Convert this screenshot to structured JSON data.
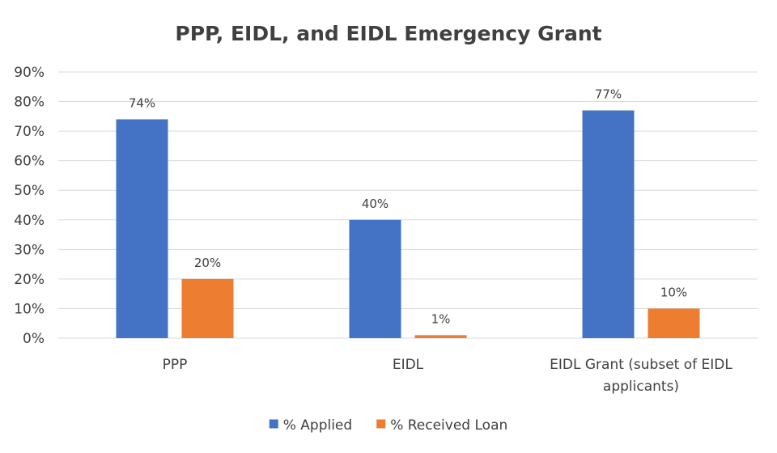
{
  "chart_data": {
    "type": "bar",
    "title": "PPP, EIDL, and EIDL Emergency Grant",
    "xlabel": "",
    "ylabel": "",
    "categories": [
      [
        "PPP"
      ],
      [
        "EIDL"
      ],
      [
        "EIDL Grant (subset of EIDL",
        "applicants)"
      ]
    ],
    "series": [
      {
        "name": "% Applied",
        "color": "#4472c4",
        "values": [
          74,
          40,
          77
        ],
        "labels": [
          "74%",
          "40%",
          "77%"
        ]
      },
      {
        "name": "% Received Loan",
        "color": "#ed7d31",
        "values": [
          20,
          1,
          10
        ],
        "labels": [
          "20%",
          "1%",
          "10%"
        ]
      }
    ],
    "ylim": [
      0,
      90
    ],
    "yticks": [
      0,
      10,
      20,
      30,
      40,
      50,
      60,
      70,
      80,
      90
    ],
    "ytick_labels": [
      "0%",
      "10%",
      "20%",
      "30%",
      "40%",
      "50%",
      "60%",
      "70%",
      "80%",
      "90%"
    ],
    "grid": true,
    "legend_position": "bottom-center"
  }
}
